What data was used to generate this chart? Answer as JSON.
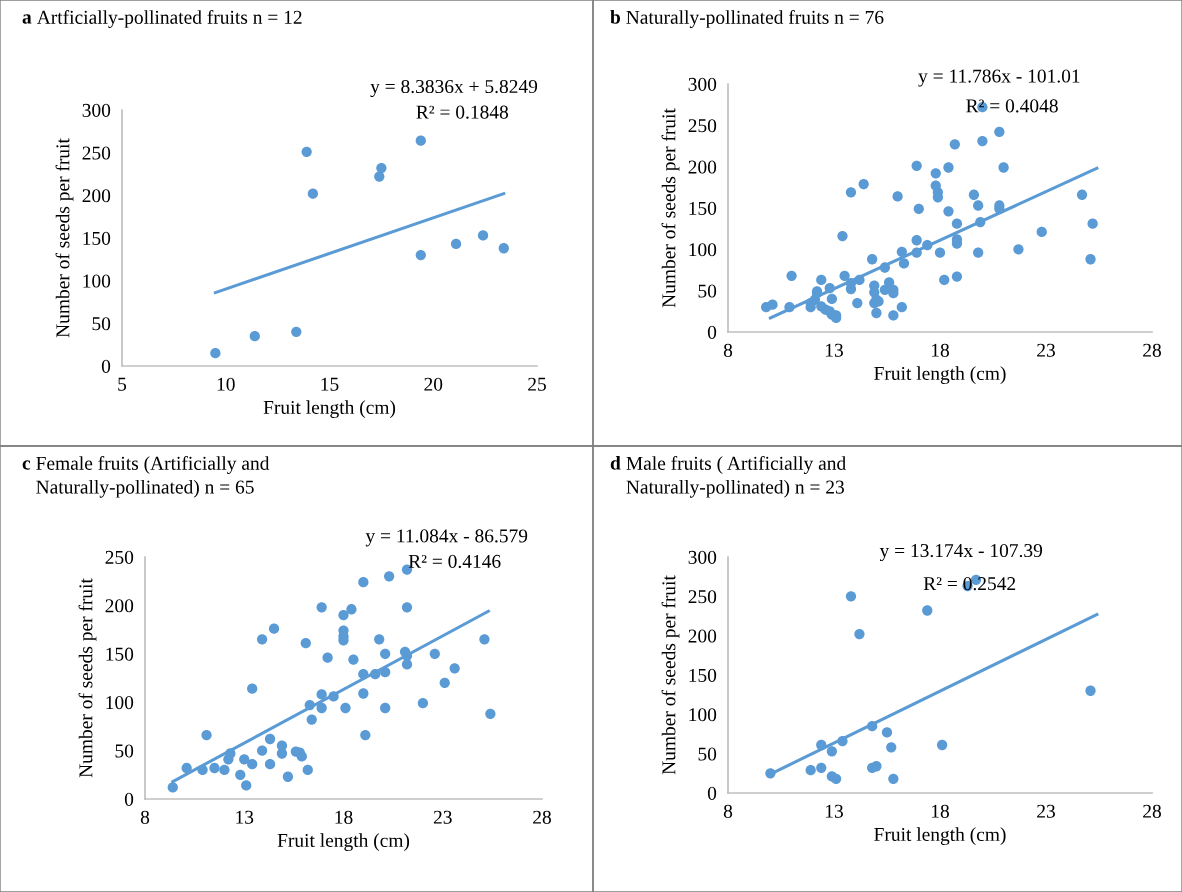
{
  "chart_data": [
    {
      "type": "scatter",
      "title": "a Artficially-pollinated fruits n = 12",
      "xlabel": "Fruit length (cm)",
      "ylabel": "Number of seeds per fruit",
      "annotations": [
        "y = 8.3836x + 5.8249",
        "R² = 0.1848"
      ],
      "xlim": [
        5,
        25
      ],
      "xticks": [
        5,
        10,
        15,
        20,
        25
      ],
      "ylim": [
        0,
        300
      ],
      "yticks": [
        0,
        50,
        100,
        150,
        200,
        250,
        300
      ],
      "grid": false,
      "series": [
        {
          "marker": "circle",
          "color": "#5b9bd5",
          "x": [
            9.5,
            11.4,
            13.4,
            13.9,
            14.2,
            17.4,
            17.5,
            19.4,
            19.4,
            21.1,
            22.4,
            23.4
          ],
          "values": [
            15,
            35,
            40,
            251,
            202,
            222,
            232,
            264,
            130,
            143,
            153,
            138
          ]
        },
        {
          "type": "line",
          "color": "#5b9bd5",
          "line_style": "solid",
          "x": [
            9.5,
            23.4
          ],
          "values": [
            86,
            202
          ]
        }
      ]
    },
    {
      "type": "scatter",
      "title": "b Naturally-pollinated fruits n = 76",
      "xlabel": "Fruit length (cm)",
      "ylabel": "Number of seeds per fruit",
      "annotations": [
        "y = 11.786x - 101.01",
        "R² = 0.4048"
      ],
      "xlim": [
        8,
        28
      ],
      "xticks": [
        8,
        13,
        18,
        23,
        28
      ],
      "ylim": [
        0,
        300
      ],
      "yticks": [
        0,
        50,
        100,
        150,
        200,
        250,
        300
      ],
      "grid": false,
      "series": [
        {
          "marker": "circle",
          "color": "#5b9bd5",
          "x": [
            9.8,
            10.1,
            10.9,
            11.0,
            11.9,
            11.9,
            12.1,
            12.2,
            12.2,
            12.4,
            12.4,
            12.6,
            12.8,
            12.8,
            12.9,
            12.9,
            13.1,
            13.1,
            13.4,
            13.5,
            13.8,
            13.8,
            14.1,
            14.2,
            13.8,
            14.4,
            14.8,
            14.9,
            14.9,
            14.9,
            15.0,
            15.0,
            15.1,
            15.4,
            15.4,
            15.6,
            15.8,
            15.8,
            15.8,
            16.0,
            16.2,
            16.2,
            16.3,
            16.9,
            17.0,
            16.9,
            16.9,
            17.4,
            17.8,
            17.8,
            17.9,
            17.9,
            18.0,
            18.2,
            18.4,
            18.4,
            18.7,
            18.8,
            18.8,
            18.8,
            18.8,
            19.6,
            19.8,
            19.8,
            19.9,
            20.0,
            20.0,
            20.8,
            20.8,
            20.8,
            21.0,
            21.7,
            22.8,
            24.7,
            25.1,
            25.2
          ],
          "values": [
            30,
            33,
            30,
            68,
            30,
            35,
            39,
            47,
            49,
            63,
            31,
            27,
            25,
            53,
            40,
            21,
            17,
            20,
            116,
            68,
            52,
            59,
            35,
            63,
            169,
            179,
            88,
            56,
            48,
            35,
            39,
            23,
            37,
            78,
            51,
            60,
            47,
            51,
            20,
            164,
            97,
            30,
            83,
            201,
            149,
            111,
            96,
            105,
            192,
            177,
            163,
            169,
            96,
            63,
            199,
            146,
            227,
            131,
            112,
            107,
            67,
            166,
            153,
            96,
            133,
            231,
            272,
            153,
            149,
            242,
            199,
            100,
            121,
            166,
            88,
            131
          ]
        },
        {
          "type": "line",
          "color": "#5b9bd5",
          "line_style": "solid",
          "x": [
            10.0,
            25.4
          ],
          "values": [
            17,
            198
          ]
        }
      ]
    },
    {
      "type": "scatter",
      "title": "c Female fruits (Artificially and\nNaturally-pollinated) n = 65",
      "xlabel": "Fruit length (cm)",
      "ylabel": "Number of seeds per fruit",
      "annotations": [
        "y = 11.084x - 86.579",
        "R² = 0.4146"
      ],
      "xlim": [
        8,
        28
      ],
      "xticks": [
        8,
        13,
        18,
        23,
        28
      ],
      "ylim": [
        0,
        250
      ],
      "yticks": [
        0,
        50,
        100,
        150,
        200,
        250
      ],
      "grid": false,
      "series": [
        {
          "marker": "circle",
          "color": "#5b9bd5",
          "x": [
            9.4,
            10.1,
            11.1,
            10.9,
            11.5,
            12.0,
            12.2,
            12.3,
            12.8,
            13.0,
            13.1,
            13.4,
            13.4,
            13.9,
            13.9,
            14.3,
            14.3,
            14.5,
            14.9,
            14.9,
            15.2,
            15.6,
            15.8,
            15.9,
            16.1,
            16.2,
            16.4,
            16.3,
            16.9,
            16.9,
            16.9,
            17.2,
            17.5,
            18.1,
            18.4,
            18.5,
            18.0,
            18.0,
            18.0,
            18.0,
            19.0,
            19.0,
            19.0,
            19.1,
            19.6,
            19.8,
            20.1,
            20.1,
            20.1,
            20.3,
            21.2,
            21.2,
            21.1,
            21.2,
            21.2,
            22.0,
            22.6,
            23.1,
            23.6,
            25.1,
            25.4
          ],
          "values": [
            12,
            32,
            66,
            30,
            32,
            30,
            41,
            47,
            25,
            41,
            14,
            36,
            114,
            165,
            50,
            36,
            62,
            176,
            55,
            47,
            23,
            49,
            48,
            44,
            161,
            30,
            82,
            97,
            198,
            94,
            108,
            146,
            106,
            94,
            196,
            144,
            190,
            174,
            168,
            164,
            224,
            129,
            109,
            66,
            129,
            165,
            150,
            131,
            94,
            230,
            237,
            198,
            152,
            148,
            139,
            99,
            150,
            120,
            135,
            165,
            88
          ]
        },
        {
          "type": "line",
          "color": "#5b9bd5",
          "line_style": "solid",
          "x": [
            9.4,
            25.3
          ],
          "values": [
            18,
            194
          ]
        }
      ]
    },
    {
      "type": "scatter",
      "title": "d Male fruits ( Artificially and\nNaturally-pollinated) n = 23",
      "xlabel": "Fruit length (cm)",
      "ylabel": "Number of seeds per fruit",
      "annotations": [
        "y = 13.174x - 107.39",
        "R² = 0.2542"
      ],
      "xlim": [
        8,
        28
      ],
      "xticks": [
        8,
        13,
        18,
        23,
        28
      ],
      "ylim": [
        0,
        300
      ],
      "yticks": [
        0,
        50,
        100,
        150,
        200,
        250,
        300
      ],
      "grid": false,
      "series": [
        {
          "marker": "circle",
          "color": "#5b9bd5",
          "x": [
            10.0,
            11.9,
            12.4,
            12.4,
            12.9,
            12.9,
            13.1,
            13.4,
            13.8,
            14.2,
            14.8,
            14.8,
            15.0,
            15.5,
            15.7,
            15.8,
            17.4,
            18.1,
            19.3,
            19.7,
            25.1
          ],
          "values": [
            25,
            29,
            32,
            61,
            53,
            21,
            18,
            66,
            250,
            202,
            85,
            32,
            34,
            77,
            58,
            18,
            232,
            61,
            263,
            271,
            130
          ]
        },
        {
          "type": "line",
          "color": "#5b9bd5",
          "line_style": "solid",
          "x": [
            10.0,
            25.4
          ],
          "values": [
            24,
            227
          ]
        }
      ]
    }
  ]
}
